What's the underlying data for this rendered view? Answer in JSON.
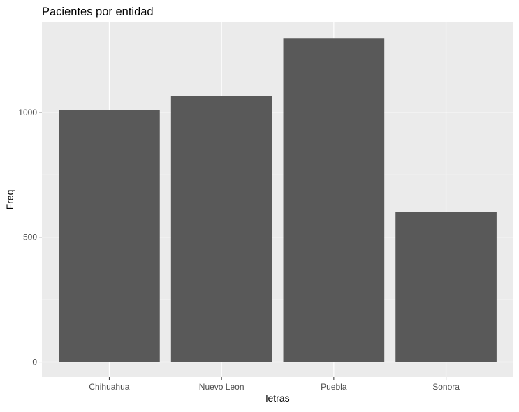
{
  "chart_data": {
    "type": "bar",
    "title": "Pacientes por entidad",
    "xlabel": "letras",
    "ylabel": "Freq",
    "categories": [
      "Chihuahua",
      "Nuevo Leon",
      "Puebla",
      "Sonora"
    ],
    "values": [
      1010,
      1065,
      1295,
      600
    ],
    "ylim": [
      -60,
      1360
    ],
    "yticks": [
      0,
      500,
      1000
    ],
    "ytick_labels": [
      "0",
      "500",
      "1000"
    ],
    "grid": true,
    "legend": "none",
    "colors": {
      "bar": "#595959",
      "panel": "#ebebeb",
      "grid_major": "#ffffff",
      "tick_text": "#4d4d4d",
      "tick_mark": "#333333"
    }
  }
}
